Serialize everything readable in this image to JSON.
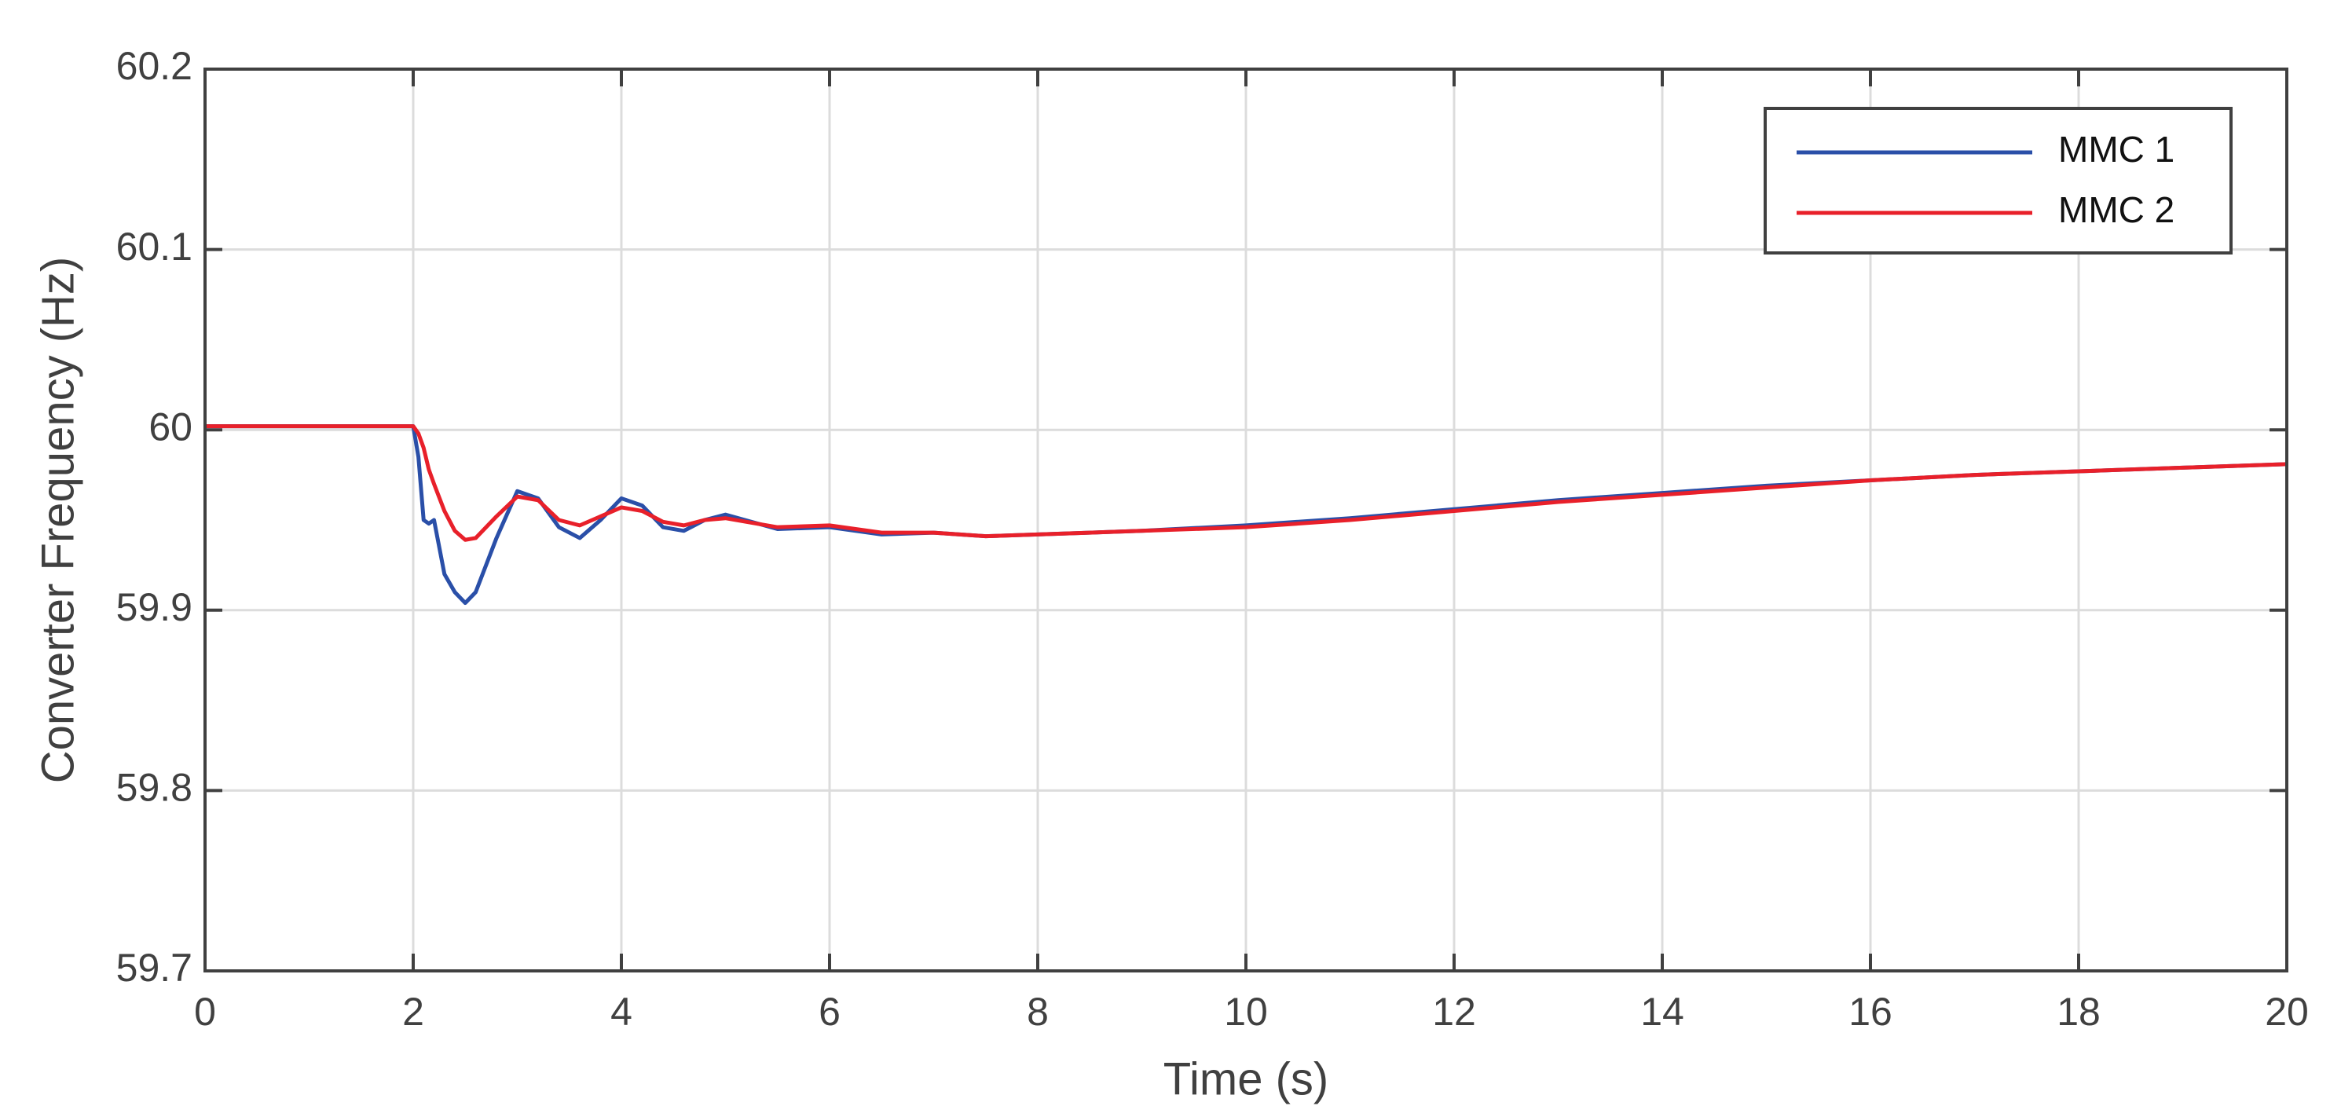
{
  "chart_data": {
    "type": "line",
    "xlabel": "Time (s)",
    "ylabel": "Converter Frequency (Hz)",
    "x": [
      0,
      1,
      2,
      2.05,
      2.1,
      2.15,
      2.2,
      2.3,
      2.4,
      2.5,
      2.6,
      2.8,
      3.0,
      3.2,
      3.4,
      3.6,
      3.8,
      4.0,
      4.2,
      4.4,
      4.6,
      4.8,
      5.0,
      5.5,
      6.0,
      6.5,
      7.0,
      7.5,
      8,
      9,
      10,
      11,
      12,
      13,
      14,
      15,
      16,
      17,
      18,
      19,
      20
    ],
    "series": [
      {
        "name": "MMC 1",
        "color": "#2a4fa8",
        "values": [
          60.002,
          60.002,
          60.002,
          59.985,
          59.95,
          59.948,
          59.95,
          59.92,
          59.91,
          59.904,
          59.91,
          59.94,
          59.966,
          59.962,
          59.946,
          59.94,
          59.95,
          59.962,
          59.958,
          59.946,
          59.944,
          59.95,
          59.953,
          59.945,
          59.946,
          59.942,
          59.943,
          59.941,
          59.942,
          59.944,
          59.947,
          59.951,
          59.956,
          59.961,
          59.965,
          59.969,
          59.972,
          59.975,
          59.977,
          59.979,
          59.981
        ]
      },
      {
        "name": "MMC 2",
        "color": "#e8202a",
        "values": [
          60.002,
          60.002,
          60.002,
          59.998,
          59.99,
          59.978,
          59.97,
          59.955,
          59.944,
          59.939,
          59.94,
          59.952,
          59.963,
          59.961,
          59.95,
          59.947,
          59.952,
          59.957,
          59.955,
          59.949,
          59.947,
          59.95,
          59.951,
          59.946,
          59.947,
          59.943,
          59.943,
          59.941,
          59.942,
          59.944,
          59.946,
          59.95,
          59.955,
          59.96,
          59.964,
          59.968,
          59.972,
          59.975,
          59.977,
          59.979,
          59.981
        ]
      }
    ],
    "xlim": [
      0,
      20
    ],
    "xticks": [
      0,
      2,
      4,
      6,
      8,
      10,
      12,
      14,
      16,
      18,
      20
    ],
    "ylim": [
      59.7,
      60.2
    ],
    "yticks": [
      59.7,
      59.8,
      59.9,
      60,
      60.1,
      60.2
    ],
    "grid": true,
    "legend": "upper right"
  }
}
